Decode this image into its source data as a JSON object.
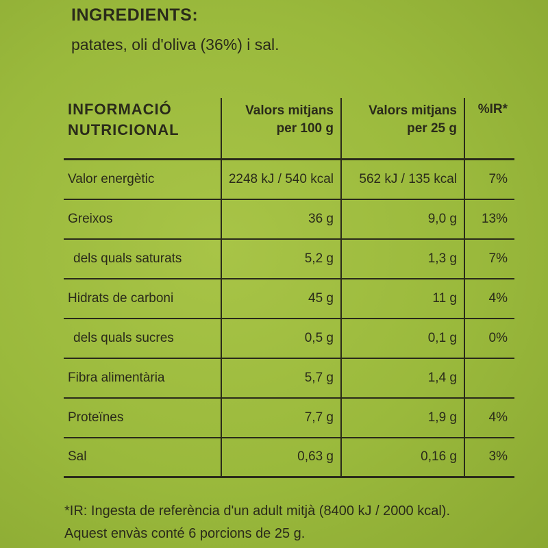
{
  "ingredients": {
    "title": "INGREDIENTS:",
    "text": "patates, oli d'oliva (36%) i sal."
  },
  "table": {
    "headers": {
      "col1_line1": "INFORMACIÓ",
      "col1_line2": "NUTRICIONAL",
      "col2_line1": "Valors mitjans",
      "col2_line2": "per 100 g",
      "col3_line1": "Valors mitjans",
      "col3_line2": "per 25 g",
      "col4": "%IR*"
    },
    "rows": [
      {
        "label": "Valor energètic",
        "per100": "2248 kJ / 540 kcal",
        "per25": "562 kJ / 135 kcal",
        "ir": "7%"
      },
      {
        "label": "Greixos",
        "per100": "36 g",
        "per25": "9,0 g",
        "ir": "13%"
      },
      {
        "label": "dels quals saturats",
        "per100": "5,2 g",
        "per25": "1,3 g",
        "ir": "7%"
      },
      {
        "label": "Hidrats de carboni",
        "per100": "45 g",
        "per25": "11 g",
        "ir": "4%"
      },
      {
        "label": "dels quals sucres",
        "per100": "0,5 g",
        "per25": "0,1 g",
        "ir": "0%"
      },
      {
        "label": "Fibra alimentària",
        "per100": "5,7 g",
        "per25": "1,4 g",
        "ir": ""
      },
      {
        "label": "Proteïnes",
        "per100": "7,7 g",
        "per25": "1,9 g",
        "ir": "4%"
      },
      {
        "label": "Sal",
        "per100": "0,63 g",
        "per25": "0,16 g",
        "ir": "3%"
      }
    ]
  },
  "footnote": {
    "line1": "*IR: Ingesta de referència d'un adult mitjà (8400 kJ / 2000 kcal).",
    "line2": "Aquest envàs conté 6 porcions de 25 g."
  }
}
